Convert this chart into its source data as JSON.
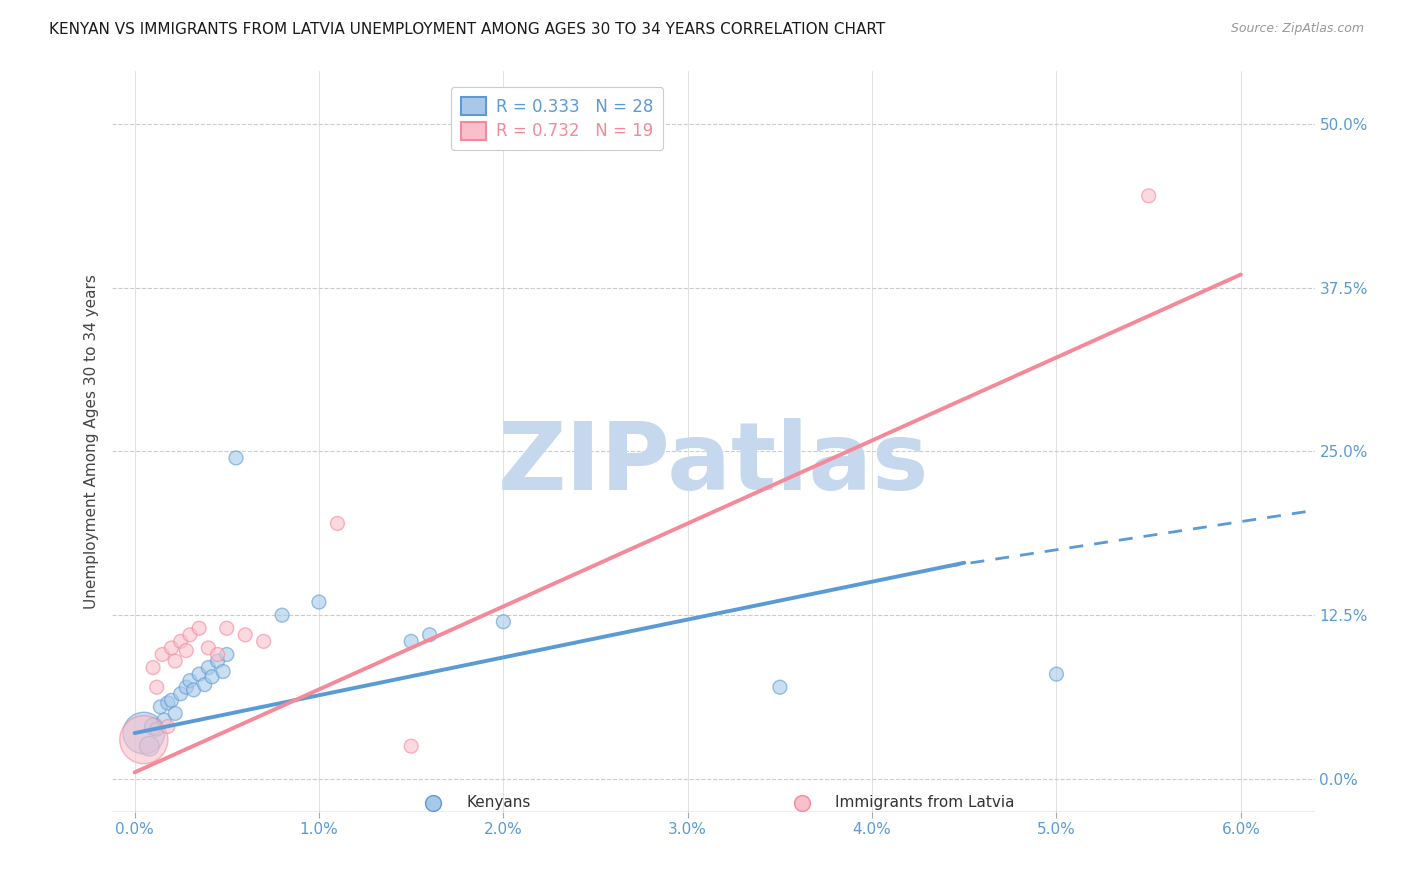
{
  "title": "KENYAN VS IMMIGRANTS FROM LATVIA UNEMPLOYMENT AMONG AGES 30 TO 34 YEARS CORRELATION CHART",
  "source": "Source: ZipAtlas.com",
  "ylabel_label": "Unemployment Among Ages 30 to 34 years",
  "legend_blue_text": "R = 0.333   N = 28",
  "legend_pink_text": "R = 0.732   N = 19",
  "legend_label_blue": "Kenyans",
  "legend_label_pink": "Immigrants from Latvia",
  "watermark": "ZIPatlas",
  "xlabel_vals": [
    0.0,
    1.0,
    2.0,
    3.0,
    4.0,
    5.0,
    6.0
  ],
  "xlabel_labels": [
    "0.0%",
    "1.0%",
    "2.0%",
    "3.0%",
    "4.0%",
    "5.0%",
    "6.0%"
  ],
  "ylabel_vals": [
    0.0,
    12.5,
    25.0,
    37.5,
    50.0
  ],
  "ylabel_labels": [
    "0.0%",
    "12.5%",
    "25.0%",
    "37.5%",
    "50.0%"
  ],
  "xlim": [
    -0.12,
    6.4
  ],
  "ylim": [
    -2.5,
    54.0
  ],
  "blue_color": "#5B9BD5",
  "pink_color": "#F4899A",
  "blue_fill": "#A8C8E8",
  "pink_fill": "#F9C0CB",
  "grid_color": "#CCCCCC",
  "bg_color": "#FFFFFF",
  "blue_scatter_x": [
    0.05,
    0.08,
    0.1,
    0.12,
    0.14,
    0.16,
    0.18,
    0.2,
    0.22,
    0.25,
    0.28,
    0.3,
    0.32,
    0.35,
    0.38,
    0.4,
    0.42,
    0.45,
    0.48,
    0.5,
    0.55,
    0.8,
    1.0,
    1.5,
    1.6,
    2.0,
    3.5,
    5.0
  ],
  "blue_scatter_y": [
    3.5,
    2.5,
    4.0,
    3.8,
    5.5,
    4.5,
    5.8,
    6.0,
    5.0,
    6.5,
    7.0,
    7.5,
    6.8,
    8.0,
    7.2,
    8.5,
    7.8,
    9.0,
    8.2,
    9.5,
    24.5,
    12.5,
    13.5,
    10.5,
    11.0,
    12.0,
    7.0,
    8.0
  ],
  "blue_scatter_sizes": [
    900,
    200,
    150,
    100,
    100,
    100,
    100,
    100,
    100,
    100,
    100,
    100,
    100,
    100,
    100,
    100,
    100,
    100,
    100,
    100,
    100,
    100,
    100,
    100,
    100,
    100,
    100,
    100
  ],
  "pink_scatter_x": [
    0.05,
    0.1,
    0.12,
    0.15,
    0.18,
    0.2,
    0.22,
    0.25,
    0.28,
    0.3,
    0.35,
    0.4,
    0.45,
    0.5,
    0.6,
    0.7,
    1.1,
    1.5,
    5.5
  ],
  "pink_scatter_y": [
    3.0,
    8.5,
    7.0,
    9.5,
    4.0,
    10.0,
    9.0,
    10.5,
    9.8,
    11.0,
    11.5,
    10.0,
    9.5,
    11.5,
    11.0,
    10.5,
    19.5,
    2.5,
    44.5
  ],
  "pink_scatter_sizes": [
    1200,
    100,
    100,
    100,
    100,
    100,
    100,
    100,
    100,
    100,
    100,
    100,
    100,
    100,
    100,
    100,
    100,
    100,
    100
  ],
  "blue_line_x1": 0.0,
  "blue_line_y1": 3.5,
  "blue_line_x2": 4.5,
  "blue_line_y2": 16.5,
  "blue_dash_x1": 4.4,
  "blue_dash_y1": 16.2,
  "blue_dash_x2": 6.4,
  "blue_dash_y2": 20.5,
  "pink_line_x1": 0.0,
  "pink_line_y1": 0.5,
  "pink_line_x2": 6.0,
  "pink_line_y2": 38.5,
  "xlim_plot": [
    -0.12,
    6.4
  ],
  "ylim_plot": [
    -2.5,
    54.0
  ],
  "title_fontsize": 11,
  "source_fontsize": 9,
  "tick_fontsize": 11,
  "legend_fontsize": 12,
  "watermark_fontsize": 68,
  "watermark_color": "#C5D8EE",
  "ylabel_fontsize": 11
}
